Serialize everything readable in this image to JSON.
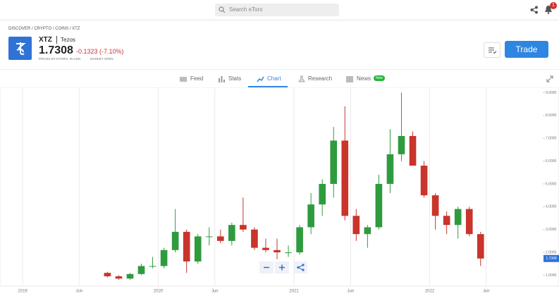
{
  "top_bar": {
    "search_placeholder": "Search eToro",
    "notification_count": "1"
  },
  "breadcrumb": "DISCOVER / CRYPTO / COINS / XTZ",
  "instrument": {
    "symbol": "XTZ",
    "name": "Tezos",
    "price": "1.7308",
    "change": "-0.1323 (-7.10%)",
    "source_note": "PRICES BY ETORO, IN USD.",
    "market_status": "MARKET OPEN"
  },
  "trade_button": "Trade",
  "tabs": [
    {
      "label": "Feed"
    },
    {
      "label": "Stats"
    },
    {
      "label": "Chart"
    },
    {
      "label": "Research"
    },
    {
      "label": "News",
      "badge": "New"
    }
  ],
  "chart_data": {
    "type": "candlestick",
    "x": [
      "2019-08",
      "2019-09",
      "2019-10",
      "2019-11",
      "2019-12",
      "2020-01",
      "2020-02",
      "2020-03",
      "2020-04",
      "2020-05",
      "2020-06",
      "2020-07",
      "2020-08",
      "2020-09",
      "2020-10",
      "2020-11",
      "2020-12",
      "2021-01",
      "2021-02",
      "2021-03",
      "2021-04",
      "2021-05",
      "2021-06",
      "2021-07",
      "2021-08",
      "2021-09",
      "2021-10",
      "2021-11",
      "2021-12",
      "2022-01",
      "2022-02",
      "2022-03",
      "2022-04",
      "2022-05"
    ],
    "open": [
      1.1,
      0.95,
      0.85,
      1.05,
      1.4,
      1.4,
      2.1,
      2.9,
      1.6,
      2.7,
      2.7,
      2.5,
      3.2,
      3.0,
      2.2,
      2.1,
      2.0,
      2.0,
      3.1,
      4.1,
      5.0,
      6.9,
      3.6,
      2.8,
      3.1,
      5.0,
      6.3,
      7.1,
      5.8,
      4.5,
      3.6,
      3.2,
      3.9,
      2.8
    ],
    "high": [
      1.15,
      1.0,
      1.1,
      1.5,
      1.8,
      2.2,
      3.9,
      3.0,
      2.8,
      3.1,
      3.0,
      3.3,
      4.4,
      3.1,
      2.6,
      2.6,
      2.3,
      3.2,
      4.6,
      5.2,
      7.5,
      8.4,
      3.9,
      3.2,
      5.4,
      7.4,
      9.0,
      7.3,
      6.0,
      4.6,
      3.8,
      4.0,
      4.0,
      2.9
    ],
    "low": [
      0.9,
      0.8,
      0.8,
      1.0,
      1.3,
      1.3,
      2.0,
      1.1,
      1.5,
      2.3,
      2.4,
      2.3,
      2.9,
      2.1,
      2.0,
      1.7,
      1.8,
      1.9,
      2.8,
      3.6,
      4.4,
      3.4,
      2.5,
      2.2,
      3.0,
      4.6,
      6.0,
      5.8,
      4.4,
      3.0,
      2.8,
      2.6,
      2.7,
      1.4
    ],
    "close": [
      0.95,
      0.85,
      1.05,
      1.4,
      1.4,
      2.1,
      2.9,
      1.6,
      2.7,
      2.7,
      2.5,
      3.2,
      3.0,
      2.2,
      2.1,
      2.0,
      2.0,
      3.1,
      4.1,
      5.0,
      6.9,
      3.6,
      2.8,
      3.1,
      5.0,
      6.3,
      7.1,
      5.8,
      4.5,
      3.6,
      3.2,
      3.9,
      2.8,
      1.73
    ],
    "up_color": "#2f9b3f",
    "down_color": "#c9342b",
    "xlim": [
      "2018-11",
      "2022-11"
    ],
    "xticks": [
      {
        "value": "2019-01",
        "label": "2019"
      },
      {
        "value": "2019-06",
        "label": "Jun"
      },
      {
        "value": "2020-01",
        "label": "2020"
      },
      {
        "value": "2020-06",
        "label": "Jun"
      },
      {
        "value": "2021-01",
        "label": "2021"
      },
      {
        "value": "2021-06",
        "label": "Jun"
      },
      {
        "value": "2022-01",
        "label": "2022"
      },
      {
        "value": "2022-06",
        "label": "Jun"
      }
    ],
    "ylim": [
      0.55,
      9.2
    ],
    "yticks": [
      {
        "value": 1,
        "label": "1.0000"
      },
      {
        "value": 2,
        "label": "2.0000"
      },
      {
        "value": 3,
        "label": "3.0000"
      },
      {
        "value": 4,
        "label": "4.0000"
      },
      {
        "value": 5,
        "label": "5.0000"
      },
      {
        "value": 6,
        "label": "6.0000"
      },
      {
        "value": 7,
        "label": "7.0000"
      },
      {
        "value": 8,
        "label": "8.0000"
      },
      {
        "value": 9,
        "label": "9.0000"
      }
    ]
  }
}
